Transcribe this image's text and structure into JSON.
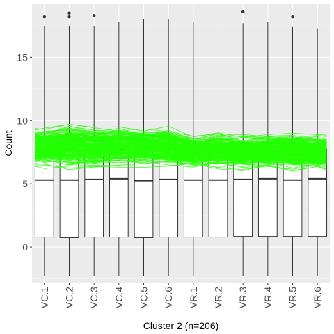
{
  "chart_data": {
    "type": "box",
    "xlabel": "Cluster 2 (n=206)",
    "ylabel": "Count",
    "categories": [
      "VC.1",
      "VC.2",
      "VC.3",
      "VC.4",
      "VC.5",
      "VC.6",
      "VR.1",
      "VR.2",
      "VR.3",
      "VR.4",
      "VR.5",
      "VR.6"
    ],
    "ylim": [
      -2.8,
      19.2
    ],
    "yticks": [
      0,
      5,
      10,
      15
    ],
    "grid": true,
    "boxes": [
      {
        "category": "VC.1",
        "whisker_low": -2.3,
        "q1": 0.8,
        "median": 5.3,
        "q3": 7.7,
        "whisker_high": 17.5,
        "outliers": [
          18.2
        ]
      },
      {
        "category": "VC.2",
        "whisker_low": -2.3,
        "q1": 0.75,
        "median": 5.3,
        "q3": 7.7,
        "whisker_high": 17.5,
        "outliers": [
          18.2,
          18.5
        ]
      },
      {
        "category": "VC.3",
        "whisker_low": -2.3,
        "q1": 0.8,
        "median": 5.35,
        "q3": 7.7,
        "whisker_high": 17.5,
        "outliers": [
          18.3
        ]
      },
      {
        "category": "VC.4",
        "whisker_low": -2.3,
        "q1": 0.8,
        "median": 5.4,
        "q3": 7.75,
        "whisker_high": 17.8,
        "outliers": []
      },
      {
        "category": "VC.5",
        "whisker_low": -2.3,
        "q1": 0.75,
        "median": 5.25,
        "q3": 7.7,
        "whisker_high": 18.0,
        "outliers": []
      },
      {
        "category": "VC.6",
        "whisker_low": -2.3,
        "q1": 0.8,
        "median": 5.35,
        "q3": 7.75,
        "whisker_high": 18.0,
        "outliers": []
      },
      {
        "category": "VR.1",
        "whisker_low": -2.3,
        "q1": 0.8,
        "median": 5.3,
        "q3": 7.7,
        "whisker_high": 17.8,
        "outliers": []
      },
      {
        "category": "VR.2",
        "whisker_low": -2.3,
        "q1": 0.8,
        "median": 5.3,
        "q3": 7.7,
        "whisker_high": 17.8,
        "outliers": []
      },
      {
        "category": "VR.3",
        "whisker_low": -2.3,
        "q1": 0.85,
        "median": 5.35,
        "q3": 7.7,
        "whisker_high": 17.7,
        "outliers": [
          18.6
        ]
      },
      {
        "category": "VR.4",
        "whisker_low": -2.3,
        "q1": 0.85,
        "median": 5.4,
        "q3": 7.75,
        "whisker_high": 17.8,
        "outliers": []
      },
      {
        "category": "VR.5",
        "whisker_low": -2.3,
        "q1": 0.85,
        "median": 5.3,
        "q3": 7.7,
        "whisker_high": 17.4,
        "outliers": [
          18.2
        ]
      },
      {
        "category": "VR.6",
        "whisker_low": -2.3,
        "q1": 0.85,
        "median": 5.4,
        "q3": 7.75,
        "whisker_high": 17.3,
        "outliers": []
      }
    ],
    "overlay_lines": {
      "count": 206,
      "mean_profile": [
        7.9,
        8.0,
        7.9,
        8.0,
        7.9,
        7.9,
        7.6,
        7.7,
        7.6,
        7.6,
        7.6,
        7.5
      ],
      "band_low": [
        6.0,
        6.0,
        6.0,
        6.3,
        6.3,
        6.4,
        6.2,
        6.1,
        6.0,
        6.0,
        6.0,
        5.8
      ],
      "band_high": [
        9.4,
        10.1,
        9.6,
        9.8,
        9.5,
        9.7,
        8.9,
        9.2,
        8.9,
        8.9,
        9.2,
        8.9
      ]
    },
    "colors": {
      "panel": "#ebebeb",
      "grid_major": "#ffffff",
      "grid_minor": "#f5f5f5",
      "box_fill": "#ffffff",
      "box_stroke": "#333333",
      "lines": "#22ff00"
    }
  }
}
